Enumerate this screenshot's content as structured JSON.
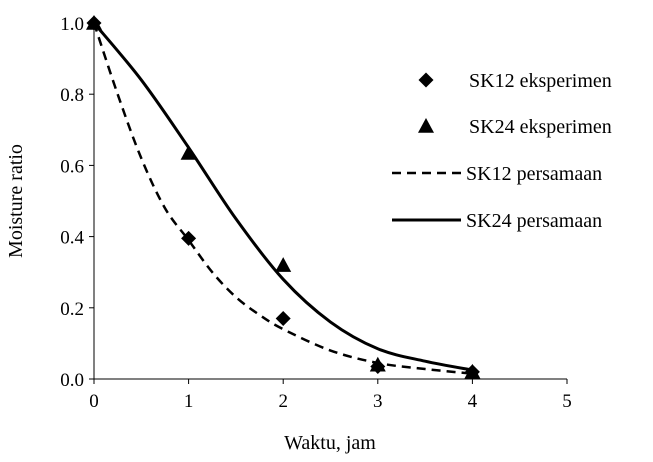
{
  "chart_data": {
    "type": "line",
    "xlabel": "Waktu, jam",
    "ylabel": "Moisture ratio",
    "xlim": [
      0,
      5
    ],
    "ylim": [
      0,
      1
    ],
    "xticks": [
      "0",
      "1",
      "2",
      "3",
      "4",
      "5"
    ],
    "yticks": [
      "0.0",
      "0.2",
      "0.4",
      "0.6",
      "0.8",
      "1.0"
    ],
    "grid": false,
    "legend_position": "right",
    "series": [
      {
        "name": "SK12 eksperimen",
        "kind": "scatter",
        "marker": "diamond",
        "color": "#000000",
        "x": [
          0,
          1,
          2,
          3,
          4
        ],
        "y": [
          1.0,
          0.395,
          0.17,
          0.035,
          0.02
        ]
      },
      {
        "name": "SK24 eksperimen",
        "kind": "scatter",
        "marker": "triangle",
        "color": "#000000",
        "x": [
          0,
          1,
          2,
          3,
          4
        ],
        "y": [
          1.0,
          0.635,
          0.32,
          0.04,
          0.02
        ]
      },
      {
        "name": "SK12 persamaan",
        "kind": "line",
        "dash": "dashed",
        "color": "#000000",
        "x": [
          0,
          0.25,
          0.5,
          0.75,
          1.0,
          1.25,
          1.5,
          1.75,
          2.0,
          2.5,
          3.0,
          3.5,
          4.0
        ],
        "y": [
          1.0,
          0.8,
          0.62,
          0.48,
          0.39,
          0.3,
          0.23,
          0.18,
          0.14,
          0.08,
          0.045,
          0.028,
          0.015
        ]
      },
      {
        "name": "SK24 persamaan",
        "kind": "line",
        "dash": "solid",
        "color": "#000000",
        "x": [
          0,
          0.5,
          1.0,
          1.5,
          2.0,
          2.5,
          3.0,
          3.5,
          4.0
        ],
        "y": [
          1.0,
          0.84,
          0.65,
          0.45,
          0.28,
          0.16,
          0.085,
          0.05,
          0.025
        ]
      }
    ]
  }
}
